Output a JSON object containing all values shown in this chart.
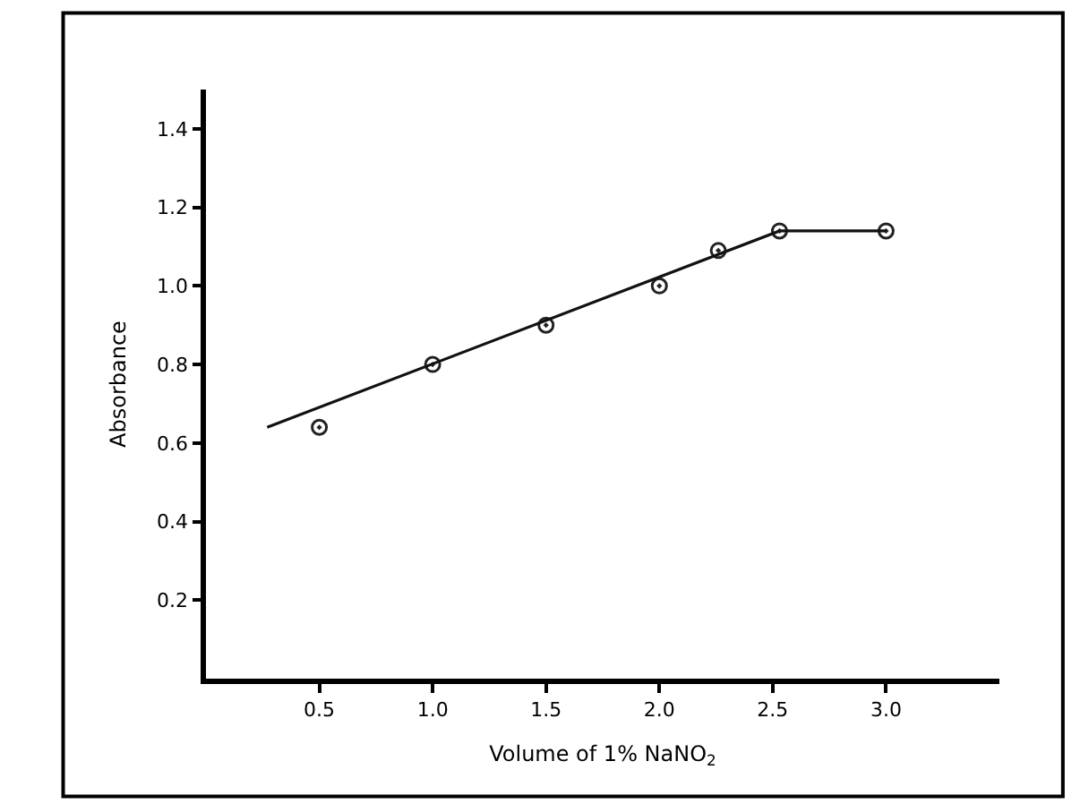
{
  "chart_data": {
    "type": "scatter",
    "xlabel": "Volume of 1% NaNO$_{2}$",
    "ylabel": "Absorbance",
    "xlim": [
      0,
      3.5
    ],
    "ylim": [
      0,
      1.5
    ],
    "xticks": [
      0.5,
      {
        "value": 1,
        "label": "1.0"
      },
      1.5,
      {
        "value": 2,
        "label": "2.0"
      },
      2.5,
      {
        "value": 3,
        "label": "3.0"
      }
    ],
    "yticks": [
      0.2,
      0.4,
      0.6,
      0.8,
      {
        "value": 1,
        "label": "1.0"
      },
      1.2,
      1.4
    ],
    "legend": false,
    "series": [
      {
        "color": "#222222",
        "marker": "circle",
        "x": [
          0.5,
          1.0,
          1.5,
          2.0,
          2.26,
          2.53,
          3.0
        ],
        "values": [
          0.64,
          0.8,
          0.9,
          1.0,
          1.09,
          1.14,
          1.14
        ]
      },
      {
        "type": "line",
        "color": "#111111",
        "line_style": "solid",
        "x": [
          0.27,
          2.53,
          3.0
        ],
        "values": [
          0.64,
          1.14,
          1.14
        ]
      }
    ]
  }
}
